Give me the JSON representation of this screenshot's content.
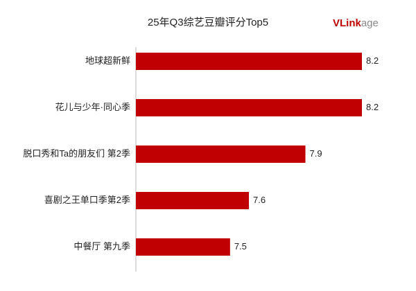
{
  "chart_data": {
    "type": "bar",
    "orientation": "horizontal",
    "title": "25年Q3综艺豆瓣评分Top5",
    "logo": {
      "primary": "VLink",
      "secondary": "age"
    },
    "categories": [
      "地球超新鲜",
      "花儿与少年·同心季",
      "脱口秀和Ta的朋友们 第2季",
      "喜剧之王单口季第2季",
      "中餐厅 第九季"
    ],
    "values": [
      8.2,
      8.2,
      7.9,
      7.6,
      7.5
    ],
    "color": "#c00000",
    "xlim": [
      7,
      8.2
    ]
  }
}
